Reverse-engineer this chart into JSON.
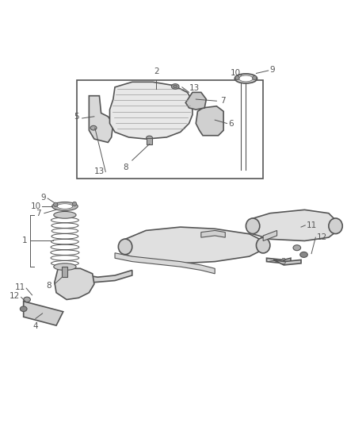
{
  "bg_color": "#ffffff",
  "line_color": "#555555",
  "label_color": "#555555",
  "fig_width": 4.38,
  "fig_height": 5.33,
  "dpi": 100
}
